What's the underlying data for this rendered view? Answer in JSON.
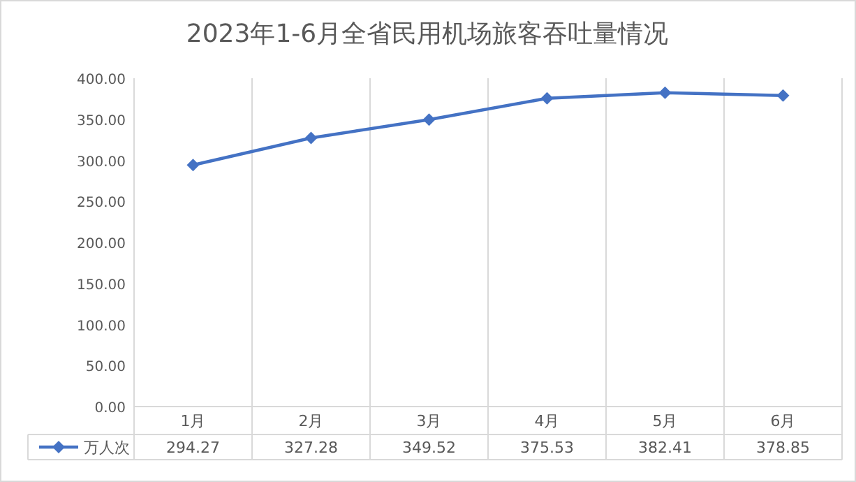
{
  "chart_data": {
    "type": "line",
    "title": "2023年1-6月全省民用机场旅客吞吐量情况",
    "categories": [
      "1月",
      "2月",
      "3月",
      "4月",
      "5月",
      "6月"
    ],
    "series": [
      {
        "name": "万人次",
        "color": "#4472c4",
        "values": [
          294.27,
          327.28,
          349.52,
          375.53,
          382.41,
          378.85
        ]
      }
    ],
    "ylim": [
      0,
      400
    ],
    "yticks": [
      {
        "value": 0,
        "label": "0.00"
      },
      {
        "value": 50,
        "label": "50.00"
      },
      {
        "value": 100,
        "label": "100.00"
      },
      {
        "value": 150,
        "label": "150.00"
      },
      {
        "value": 200,
        "label": "200.00"
      },
      {
        "value": 250,
        "label": "250.00"
      },
      {
        "value": 300,
        "label": "300.00"
      },
      {
        "value": 350,
        "label": "350.00"
      },
      {
        "value": 400,
        "label": "400.00"
      }
    ],
    "grid": "x",
    "legend": "bottom",
    "marker": "diamond",
    "line_style": "solid",
    "data_labels": true
  }
}
